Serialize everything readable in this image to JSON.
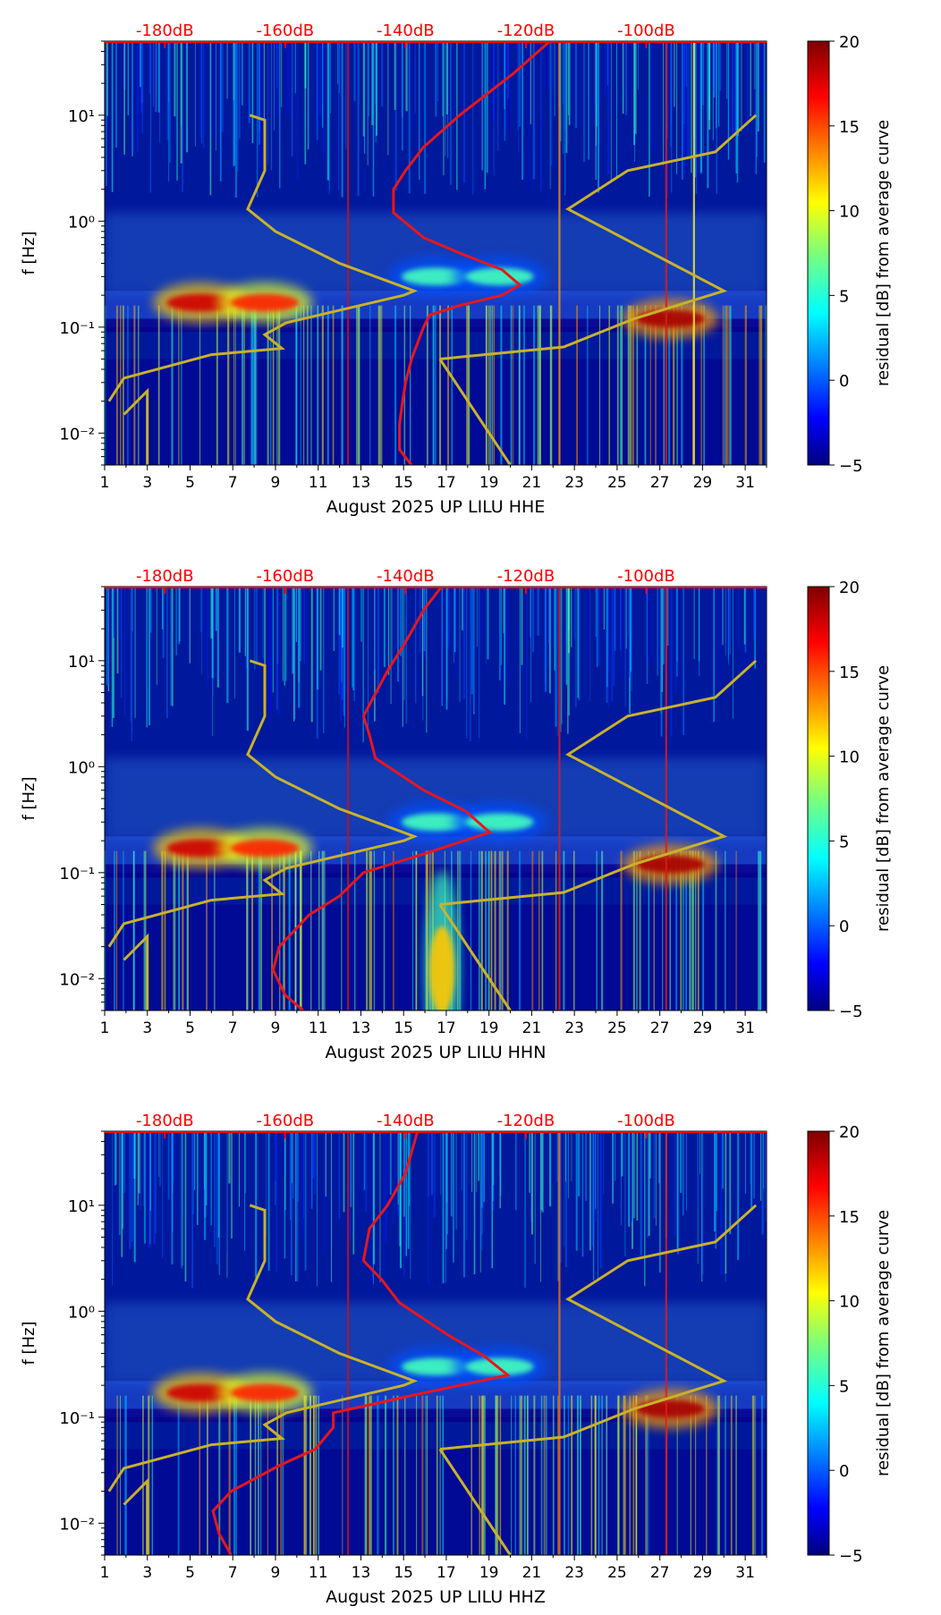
{
  "chart_data": [
    {
      "type": "heatmap",
      "title": "",
      "xlabel": "August 2025 UP LILU  HHE",
      "ylabel": "f [Hz]",
      "x_ticks": [
        "1",
        "3",
        "5",
        "7",
        "9",
        "11",
        "13",
        "15",
        "17",
        "19",
        "21",
        "23",
        "25",
        "27",
        "29",
        "31"
      ],
      "y_ticks": [
        "10⁻²",
        "10⁻¹",
        "10⁰",
        "10¹"
      ],
      "top_ticks": [
        "-180dB",
        "-160dB",
        "-140dB",
        "-120dB",
        "-100dB"
      ],
      "colorbar": {
        "label": "residual [dB] from average curve",
        "ticks": [
          "−5",
          "0",
          "5",
          "10",
          "15",
          "20"
        ],
        "range": [
          -5,
          20
        ]
      },
      "xlim": [
        1,
        32
      ],
      "ylim_hz": [
        0.005,
        50
      ],
      "psd_curve": {
        "name": "average PSD (top axis dB)",
        "color": "#e8161c",
        "points": [
          [
            -139,
            0.005
          ],
          [
            -141,
            0.007
          ],
          [
            -141,
            0.012
          ],
          [
            -140.5,
            0.02
          ],
          [
            -140,
            0.03
          ],
          [
            -139,
            0.05
          ],
          [
            -137,
            0.1
          ],
          [
            -136,
            0.13
          ],
          [
            -131,
            0.16
          ],
          [
            -124,
            0.2
          ],
          [
            -121,
            0.25
          ],
          [
            -124,
            0.35
          ],
          [
            -131,
            0.5
          ],
          [
            -137,
            0.7
          ],
          [
            -142,
            1.2
          ],
          [
            -142,
            2
          ],
          [
            -140,
            3
          ],
          [
            -137,
            5
          ],
          [
            -131,
            10
          ],
          [
            -122,
            25
          ],
          [
            -116,
            50
          ]
        ]
      },
      "model_curve": {
        "name": "noise model",
        "color": "#c8b22a",
        "points": [
          [
            [
              1.9,
              0.015
            ],
            [
              3,
              0.025
            ],
            [
              3,
              0.005
            ]
          ],
          [
            [
              1.2,
              0.02
            ],
            [
              1.9,
              0.033
            ],
            [
              6,
              0.055
            ],
            [
              9.3,
              0.063
            ],
            [
              8.5,
              0.085
            ],
            [
              9.5,
              0.11
            ],
            [
              15,
              0.2
            ],
            [
              15.5,
              0.22
            ],
            [
              12,
              0.4
            ],
            [
              9,
              0.8
            ],
            [
              7.7,
              1.3
            ],
            [
              8.5,
              3
            ],
            [
              8.5,
              9
            ],
            [
              7.8,
              10
            ]
          ],
          [
            [
              16.7,
              0.05
            ],
            [
              22.5,
              0.065
            ],
            [
              25.8,
              0.12
            ],
            [
              30,
              0.22
            ],
            [
              22.7,
              1.3
            ],
            [
              25.5,
              3
            ],
            [
              29.6,
              4.5
            ],
            [
              31.5,
              10
            ],
            [
              31.5,
              10
            ]
          ],
          [
            [
              16.7,
              0.05
            ],
            [
              20,
              0.005
            ]
          ]
        ]
      },
      "vertical_lines": [
        {
          "day": 12.4,
          "color": "#c0141a"
        },
        {
          "day": 22.3,
          "color": "#ff8b00"
        },
        {
          "day": 28.6,
          "color": "#f2e82a"
        },
        {
          "day": 27.3,
          "color": "#e01a16"
        }
      ],
      "blobs": [
        {
          "day": 5.5,
          "f": 0.17,
          "level": 18
        },
        {
          "day": 8.5,
          "f": 0.17,
          "level": 16
        },
        {
          "day": 27.5,
          "f": 0.12,
          "level": 19
        },
        {
          "day": 16.5,
          "f": 0.3,
          "level": 6
        },
        {
          "day": 19.5,
          "f": 0.3,
          "level": 6
        }
      ]
    },
    {
      "type": "heatmap",
      "title": "",
      "xlabel": "August 2025 UP LILU  HHN",
      "ylabel": "f [Hz]",
      "x_ticks": [
        "1",
        "3",
        "5",
        "7",
        "9",
        "11",
        "13",
        "15",
        "17",
        "19",
        "21",
        "23",
        "25",
        "27",
        "29",
        "31"
      ],
      "y_ticks": [
        "10⁻²",
        "10⁻¹",
        "10⁰",
        "10¹"
      ],
      "top_ticks": [
        "-180dB",
        "-160dB",
        "-140dB",
        "-120dB",
        "-100dB"
      ],
      "colorbar": {
        "label": "residual [dB] from average curve",
        "ticks": [
          "−5",
          "0",
          "5",
          "10",
          "15",
          "20"
        ],
        "range": [
          -5,
          20
        ]
      },
      "xlim": [
        1,
        32
      ],
      "ylim_hz": [
        0.005,
        50
      ],
      "psd_curve": {
        "name": "average PSD (top axis dB)",
        "color": "#e8161c",
        "points": [
          [
            -157,
            0.005
          ],
          [
            -160,
            0.007
          ],
          [
            -162,
            0.012
          ],
          [
            -161,
            0.02
          ],
          [
            -156,
            0.04
          ],
          [
            -151,
            0.06
          ],
          [
            -147,
            0.1
          ],
          [
            -137,
            0.15
          ],
          [
            -126,
            0.24
          ],
          [
            -130,
            0.38
          ],
          [
            -137,
            0.6
          ],
          [
            -145,
            1.2
          ],
          [
            -146,
            2
          ],
          [
            -147,
            3
          ],
          [
            -143,
            8
          ],
          [
            -140,
            15
          ],
          [
            -137,
            30
          ],
          [
            -134,
            50
          ]
        ]
      },
      "model_curve": {
        "name": "noise model",
        "color": "#c8b22a",
        "points": [
          [
            [
              1.9,
              0.015
            ],
            [
              3,
              0.025
            ],
            [
              3,
              0.005
            ]
          ],
          [
            [
              1.2,
              0.02
            ],
            [
              1.9,
              0.033
            ],
            [
              6,
              0.055
            ],
            [
              9.3,
              0.063
            ],
            [
              8.5,
              0.085
            ],
            [
              9.5,
              0.11
            ],
            [
              15,
              0.2
            ],
            [
              15.5,
              0.22
            ],
            [
              12,
              0.4
            ],
            [
              9,
              0.8
            ],
            [
              7.7,
              1.3
            ],
            [
              8.5,
              3
            ],
            [
              8.5,
              9
            ],
            [
              7.8,
              10
            ]
          ],
          [
            [
              16.7,
              0.05
            ],
            [
              22.5,
              0.065
            ],
            [
              25.8,
              0.12
            ],
            [
              30,
              0.22
            ],
            [
              22.7,
              1.3
            ],
            [
              25.5,
              3
            ],
            [
              29.6,
              4.5
            ],
            [
              31.5,
              10
            ],
            [
              31.5,
              10
            ]
          ],
          [
            [
              16.7,
              0.05
            ],
            [
              20,
              0.005
            ]
          ]
        ]
      },
      "vertical_lines": [
        {
          "day": 12.4,
          "color": "#c0141a"
        },
        {
          "day": 22.3,
          "color": "#e01a16"
        },
        {
          "day": 27.3,
          "color": "#e01a16"
        }
      ],
      "blobs": [
        {
          "day": 5.5,
          "f": 0.17,
          "level": 18
        },
        {
          "day": 8.5,
          "f": 0.17,
          "level": 16
        },
        {
          "day": 27.5,
          "f": 0.12,
          "level": 19
        },
        {
          "day": 16.5,
          "f": 0.3,
          "level": 6
        },
        {
          "day": 19.5,
          "f": 0.3,
          "level": 6
        },
        {
          "day": 16.8,
          "f": 0.012,
          "level": 12
        }
      ]
    },
    {
      "type": "heatmap",
      "title": "",
      "xlabel": "August 2025 UP LILU  HHZ",
      "ylabel": "f [Hz]",
      "x_ticks": [
        "1",
        "3",
        "5",
        "7",
        "9",
        "11",
        "13",
        "15",
        "17",
        "19",
        "21",
        "23",
        "25",
        "27",
        "29",
        "31"
      ],
      "y_ticks": [
        "10⁻²",
        "10⁻¹",
        "10⁰",
        "10¹"
      ],
      "top_ticks": [
        "-180dB",
        "-160dB",
        "-140dB",
        "-120dB",
        "-100dB"
      ],
      "colorbar": {
        "label": "residual [dB] from average curve",
        "ticks": [
          "−5",
          "0",
          "5",
          "10",
          "15",
          "20"
        ],
        "range": [
          -5,
          20
        ]
      },
      "xlim": [
        1,
        32
      ],
      "ylim_hz": [
        0.005,
        50
      ],
      "psd_curve": {
        "name": "average PSD (top axis dB)",
        "color": "#e8161c",
        "points": [
          [
            -169,
            0.005
          ],
          [
            -171,
            0.008
          ],
          [
            -172,
            0.013
          ],
          [
            -169,
            0.02
          ],
          [
            -161,
            0.035
          ],
          [
            -155,
            0.05
          ],
          [
            -152,
            0.08
          ],
          [
            -152,
            0.11
          ],
          [
            -139,
            0.16
          ],
          [
            -123,
            0.25
          ],
          [
            -127,
            0.38
          ],
          [
            -133,
            0.6
          ],
          [
            -141,
            1.2
          ],
          [
            -144,
            2
          ],
          [
            -147,
            3
          ],
          [
            -146,
            6
          ],
          [
            -143,
            10
          ],
          [
            -140,
            20
          ],
          [
            -138,
            50
          ]
        ]
      },
      "model_curve": {
        "name": "noise model",
        "color": "#c8b22a",
        "points": [
          [
            [
              1.9,
              0.015
            ],
            [
              3,
              0.025
            ],
            [
              3,
              0.005
            ]
          ],
          [
            [
              1.2,
              0.02
            ],
            [
              1.9,
              0.033
            ],
            [
              6,
              0.055
            ],
            [
              9.3,
              0.063
            ],
            [
              8.5,
              0.085
            ],
            [
              9.5,
              0.11
            ],
            [
              15,
              0.2
            ],
            [
              15.5,
              0.22
            ],
            [
              12,
              0.4
            ],
            [
              9,
              0.8
            ],
            [
              7.7,
              1.3
            ],
            [
              8.5,
              3
            ],
            [
              8.5,
              9
            ],
            [
              7.8,
              10
            ]
          ],
          [
            [
              16.7,
              0.05
            ],
            [
              22.5,
              0.065
            ],
            [
              25.8,
              0.12
            ],
            [
              30,
              0.22
            ],
            [
              22.7,
              1.3
            ],
            [
              25.5,
              3
            ],
            [
              29.6,
              4.5
            ],
            [
              31.5,
              10
            ],
            [
              31.5,
              10
            ]
          ],
          [
            [
              16.7,
              0.05
            ],
            [
              20,
              0.005
            ]
          ]
        ]
      },
      "vertical_lines": [
        {
          "day": 12.4,
          "color": "#c0141a"
        },
        {
          "day": 22.3,
          "color": "#ff6a00"
        },
        {
          "day": 27.3,
          "color": "#e01a16"
        }
      ],
      "blobs": [
        {
          "day": 5.5,
          "f": 0.17,
          "level": 18
        },
        {
          "day": 8.5,
          "f": 0.17,
          "level": 16
        },
        {
          "day": 27.5,
          "f": 0.12,
          "level": 19
        },
        {
          "day": 16.5,
          "f": 0.3,
          "level": 6
        },
        {
          "day": 19.5,
          "f": 0.3,
          "level": 6
        }
      ]
    }
  ],
  "style": {
    "background": "#00189c",
    "heatmap_low": "#00008f",
    "text_color": "#000000",
    "top_tick_color": "#ff0000",
    "colormap": "jet"
  }
}
